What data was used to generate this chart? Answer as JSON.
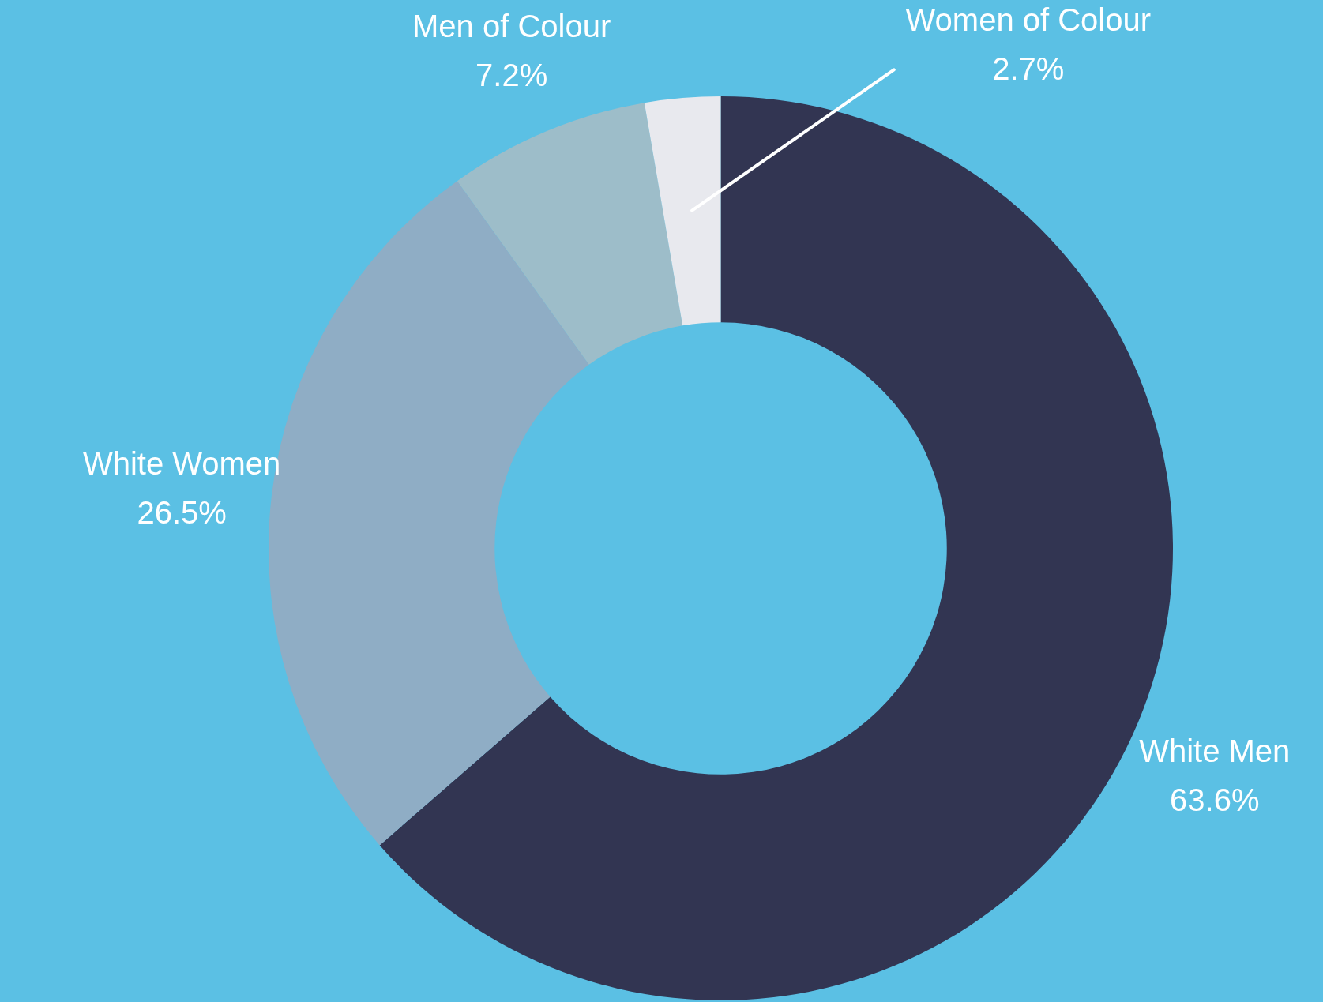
{
  "chart_data": {
    "type": "donut",
    "categories": [
      "White Men",
      "White Women",
      "Men of Colour",
      "Women of Colour"
    ],
    "values": [
      63.6,
      26.5,
      7.2,
      2.7
    ],
    "colors": [
      "#323552",
      "#8fadc5",
      "#9dbdc9",
      "#e8e9ee"
    ],
    "value_labels": [
      "63.6%",
      "26.5%",
      "7.2%",
      "2.7%"
    ],
    "legend": false
  }
}
